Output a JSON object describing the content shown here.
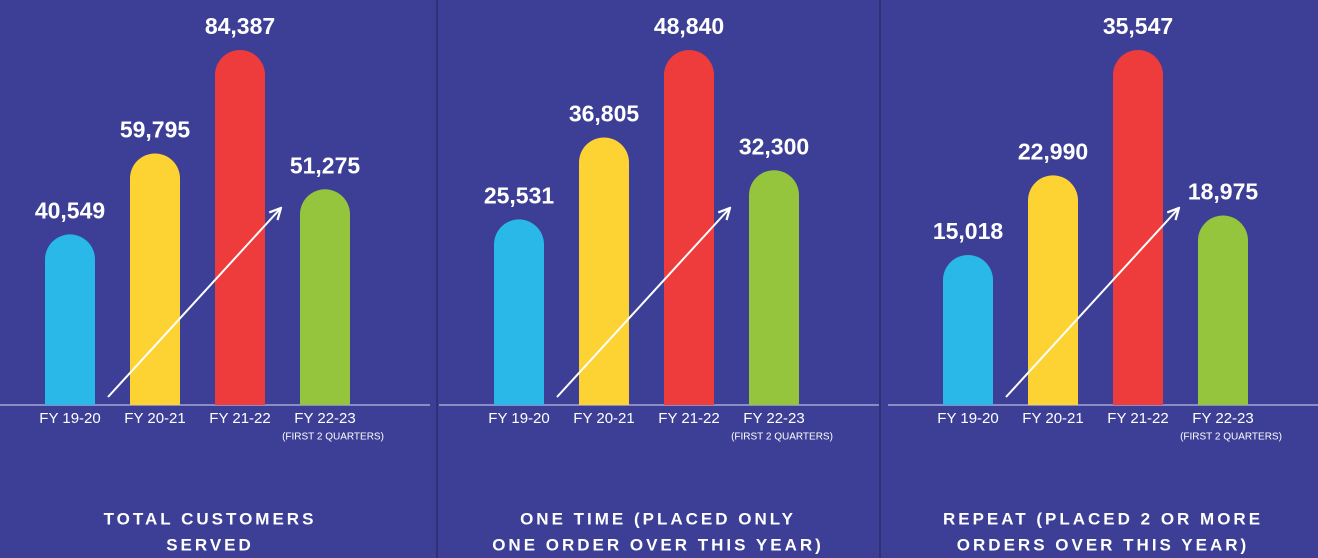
{
  "chart_data": [
    {
      "type": "bar",
      "title": [
        "TOTAL CUSTOMERS",
        "SERVED"
      ],
      "categories": [
        "FY 19-20",
        "FY 20-21",
        "FY 21-22",
        "FY 22-23"
      ],
      "category_note": "(FIRST 2 QUARTERS)",
      "values": [
        40549,
        59795,
        84387,
        51275
      ],
      "value_labels": [
        "40,549",
        "59,795",
        "84,387",
        "51,275"
      ],
      "colors": [
        "#29b8e8",
        "#fdd333",
        "#ee3b3b",
        "#95c43d"
      ]
    },
    {
      "type": "bar",
      "title": [
        "ONE TIME (PLACED ONLY",
        "ONE ORDER OVER THIS YEAR)"
      ],
      "categories": [
        "FY 19-20",
        "FY 20-21",
        "FY 21-22",
        "FY 22-23"
      ],
      "category_note": "(FIRST 2 QUARTERS)",
      "values": [
        25531,
        36805,
        48840,
        32300
      ],
      "value_labels": [
        "25,531",
        "36,805",
        "48,840",
        "32,300"
      ],
      "colors": [
        "#29b8e8",
        "#fdd333",
        "#ee3b3b",
        "#95c43d"
      ]
    },
    {
      "type": "bar",
      "title": [
        "REPEAT (PLACED 2 OR MORE",
        "ORDERS OVER THIS YEAR)"
      ],
      "categories": [
        "FY 19-20",
        "FY 20-21",
        "FY 21-22",
        "FY 22-23"
      ],
      "category_note": "(FIRST 2 QUARTERS)",
      "values": [
        15018,
        22990,
        35547,
        18975
      ],
      "value_labels": [
        "15,018",
        "22,990",
        "35,547",
        "18,975"
      ],
      "colors": [
        "#29b8e8",
        "#fdd333",
        "#ee3b3b",
        "#95c43d"
      ]
    }
  ]
}
